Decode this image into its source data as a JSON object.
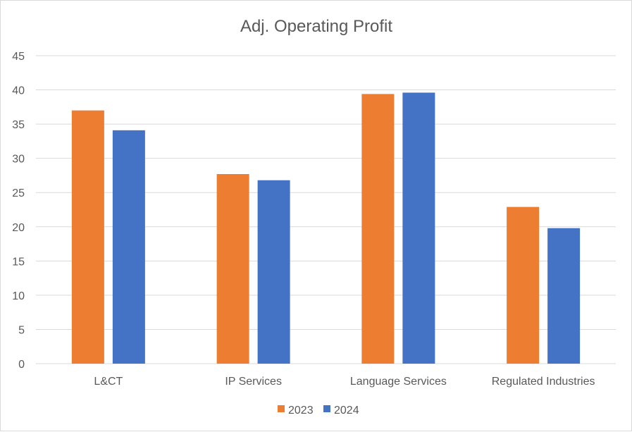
{
  "chart_data": {
    "type": "bar",
    "title": "Adj. Operating Profit",
    "xlabel": "",
    "ylabel": "",
    "categories": [
      "L&CT",
      "IP Services",
      "Language Services",
      "Regulated Industries"
    ],
    "series": [
      {
        "name": "2023",
        "values": [
          37.0,
          27.7,
          39.4,
          22.9
        ],
        "color": "#ED7D31"
      },
      {
        "name": "2024",
        "values": [
          34.1,
          26.8,
          39.6,
          19.8
        ],
        "color": "#4472C4"
      }
    ],
    "ylim": [
      0,
      45
    ],
    "yticks": [
      0,
      5,
      10,
      15,
      20,
      25,
      30,
      35,
      40,
      45
    ],
    "grid": true,
    "legend_position": "bottom",
    "colors": {
      "grid": "#d9d9d9",
      "text": "#595959",
      "border": "#d9d9d9"
    }
  }
}
